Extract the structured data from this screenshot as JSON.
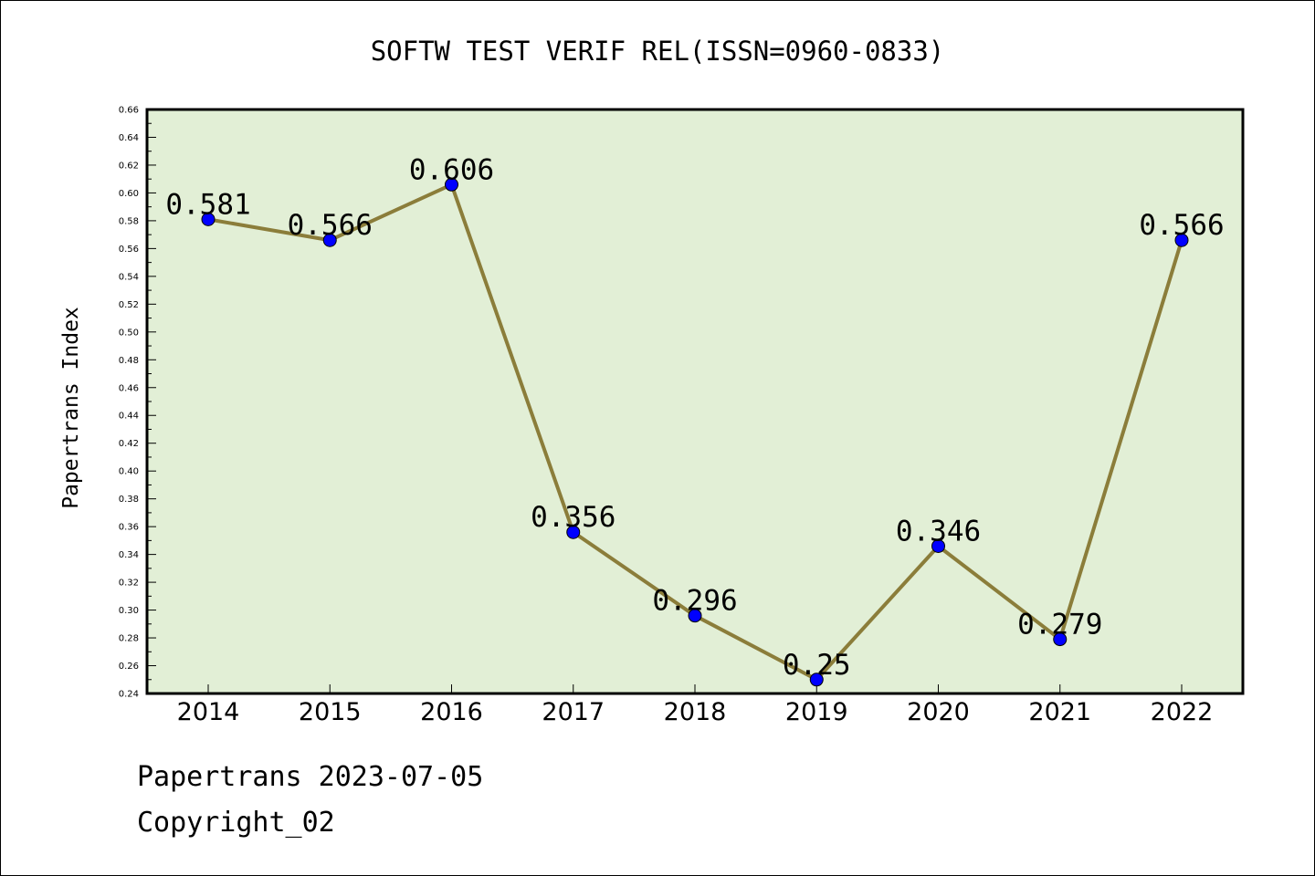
{
  "chart_data": {
    "type": "line",
    "title": "SOFTW TEST VERIF REL(ISSN=0960-0833)",
    "xlabel": "",
    "ylabel": "Papertrans Index",
    "categories": [
      "2014",
      "2015",
      "2016",
      "2017",
      "2018",
      "2019",
      "2020",
      "2021",
      "2022"
    ],
    "series": [
      {
        "values": [
          0.581,
          0.566,
          0.606,
          0.356,
          0.296,
          0.25,
          0.346,
          0.279,
          0.566
        ],
        "labels": [
          "0.581",
          "0.566",
          "0.606",
          "0.356",
          "0.296",
          "0.25",
          "0.346",
          "0.279",
          "0.566"
        ]
      }
    ],
    "ylim": [
      0.24,
      0.66
    ],
    "yticks": [
      "0.24",
      "0.26",
      "0.28",
      "0.30",
      "0.32",
      "0.34",
      "0.36",
      "0.38",
      "0.40",
      "0.42",
      "0.44",
      "0.46",
      "0.48",
      "0.50",
      "0.52",
      "0.54",
      "0.56",
      "0.58",
      "0.60",
      "0.62",
      "0.64",
      "0.66"
    ],
    "grid": false,
    "colors": {
      "plot_background": "#e2efd6",
      "line": "#8b7d3a",
      "marker": "#0000ff",
      "axis": "#000000"
    }
  },
  "footer": {
    "date_line": "Papertrans 2023-07-05",
    "copyright": "Copyright_02"
  }
}
